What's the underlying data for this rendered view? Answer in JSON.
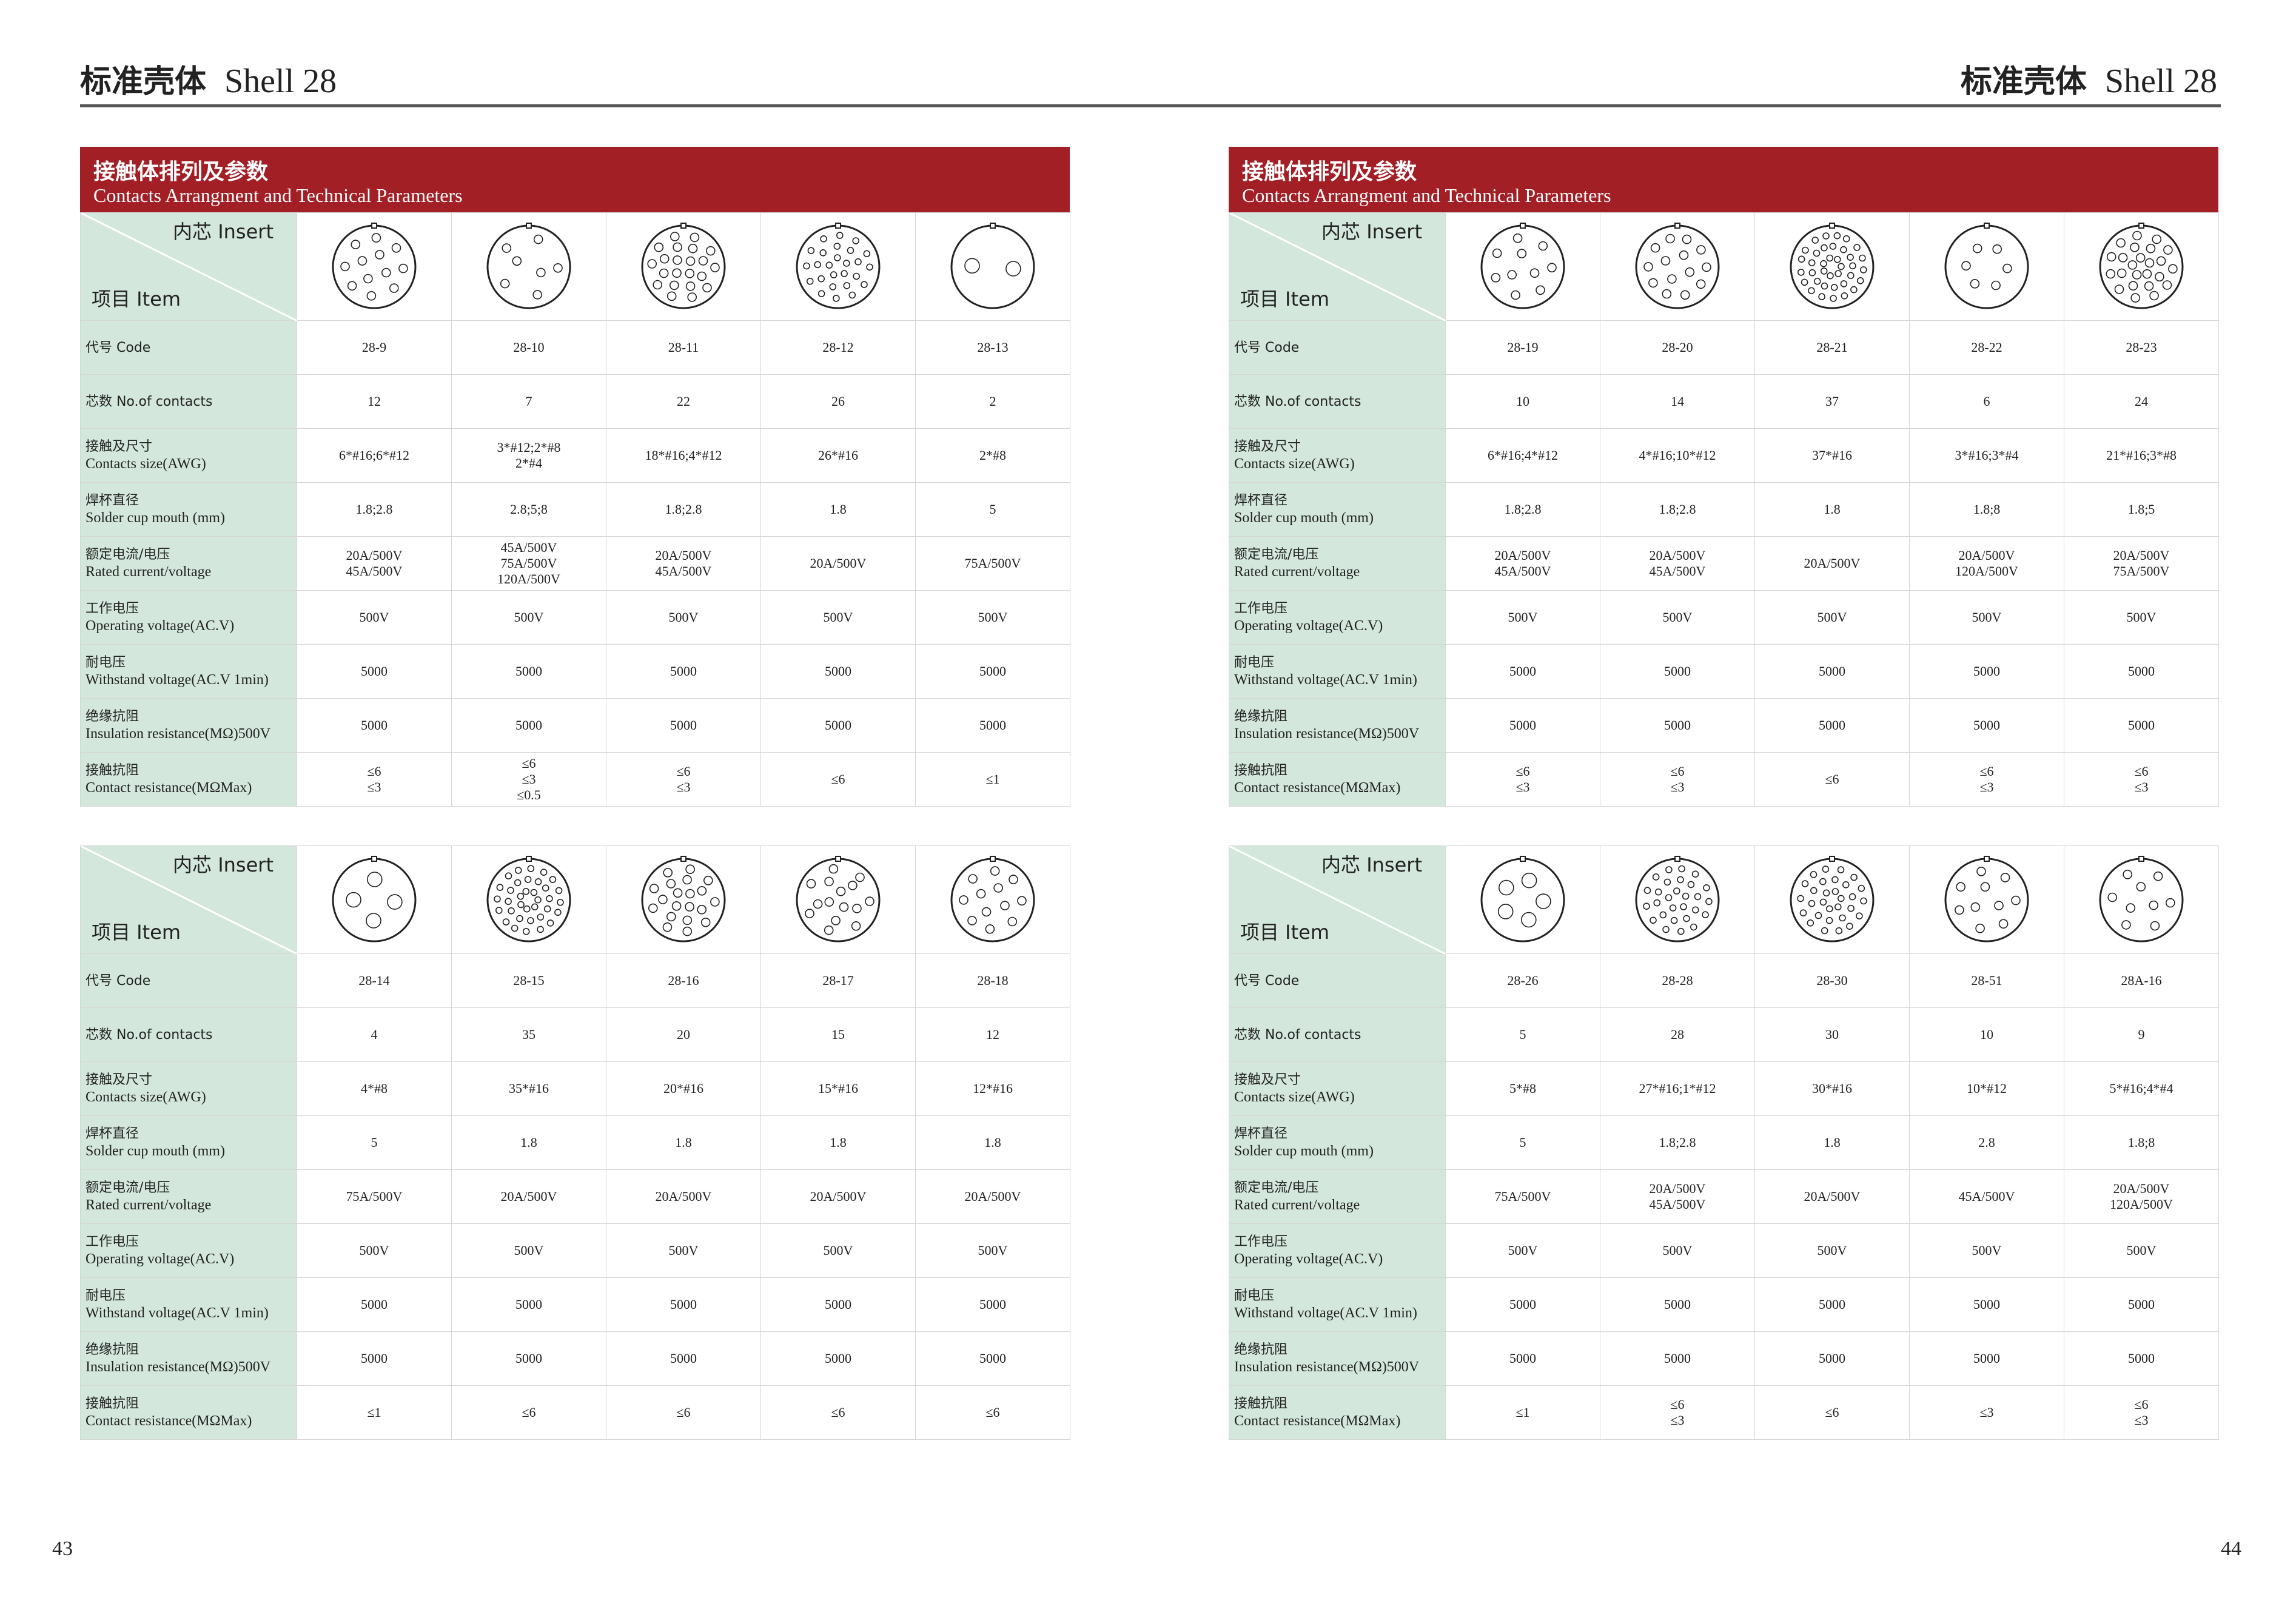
{
  "page_title_cn": "标准壳体",
  "page_title_en": "Shell 28",
  "page_numbers": {
    "left": "43",
    "right": "44"
  },
  "banner": {
    "cn": "接触体排列及参数",
    "en": "Contacts Arrangment and Technical Parameters"
  },
  "corner": {
    "insert": "内芯 Insert",
    "item": "项目 Item"
  },
  "row_labels": [
    {
      "cn": "代号 Code",
      "en": ""
    },
    {
      "cn": "芯数 No.of contacts",
      "en": ""
    },
    {
      "cn": "接触及尺寸",
      "en": "Contacts size(AWG)"
    },
    {
      "cn": "焊杯直径",
      "en": "Solder cup mouth (mm)"
    },
    {
      "cn": "额定电流/电压",
      "en": "Rated current/voltage"
    },
    {
      "cn": "工作电压",
      "en": "Operating voltage(AC.V)"
    },
    {
      "cn": "耐电压",
      "en": "Withstand voltage(AC.V 1min)"
    },
    {
      "cn": "绝缘抗阻",
      "en": "Insulation resistance(MΩ)500V"
    },
    {
      "cn": "接触抗阻",
      "en": "Contact resistance(MΩMax)"
    }
  ],
  "tables": [
    {
      "columns": [
        {
          "code": "28-9",
          "contacts": "12",
          "size": "6*#16;6*#12",
          "cup": "1.8;2.8",
          "rated": "20A/500V\n45A/500V",
          "op": "500V",
          "withstand": "5000",
          "insulation": "5000",
          "contact_res": "≤6\n≤3",
          "icon": "insert-28-9-icon"
        },
        {
          "code": "28-10",
          "contacts": "7",
          "size": "3*#12;2*#8\n2*#4",
          "cup": "2.8;5;8",
          "rated": "45A/500V\n75A/500V\n120A/500V",
          "op": "500V",
          "withstand": "5000",
          "insulation": "5000",
          "contact_res": "≤6\n≤3\n≤0.5",
          "icon": "insert-28-10-icon"
        },
        {
          "code": "28-11",
          "contacts": "22",
          "size": "18*#16;4*#12",
          "cup": "1.8;2.8",
          "rated": "20A/500V\n45A/500V",
          "op": "500V",
          "withstand": "5000",
          "insulation": "5000",
          "contact_res": "≤6\n≤3",
          "icon": "insert-28-11-icon"
        },
        {
          "code": "28-12",
          "contacts": "26",
          "size": "26*#16",
          "cup": "1.8",
          "rated": "20A/500V",
          "op": "500V",
          "withstand": "5000",
          "insulation": "5000",
          "contact_res": "≤6",
          "icon": "insert-28-12-icon"
        },
        {
          "code": "28-13",
          "contacts": "2",
          "size": "2*#8",
          "cup": "5",
          "rated": "75A/500V",
          "op": "500V",
          "withstand": "5000",
          "insulation": "5000",
          "contact_res": "≤1",
          "icon": "insert-28-13-icon"
        }
      ]
    },
    {
      "columns": [
        {
          "code": "28-14",
          "contacts": "4",
          "size": "4*#8",
          "cup": "5",
          "rated": "75A/500V",
          "op": "500V",
          "withstand": "5000",
          "insulation": "5000",
          "contact_res": "≤1",
          "icon": "insert-28-14-icon"
        },
        {
          "code": "28-15",
          "contacts": "35",
          "size": "35*#16",
          "cup": "1.8",
          "rated": "20A/500V",
          "op": "500V",
          "withstand": "5000",
          "insulation": "5000",
          "contact_res": "≤6",
          "icon": "insert-28-15-icon"
        },
        {
          "code": "28-16",
          "contacts": "20",
          "size": "20*#16",
          "cup": "1.8",
          "rated": "20A/500V",
          "op": "500V",
          "withstand": "5000",
          "insulation": "5000",
          "contact_res": "≤6",
          "icon": "insert-28-16-icon"
        },
        {
          "code": "28-17",
          "contacts": "15",
          "size": "15*#16",
          "cup": "1.8",
          "rated": "20A/500V",
          "op": "500V",
          "withstand": "5000",
          "insulation": "5000",
          "contact_res": "≤6",
          "icon": "insert-28-17-icon"
        },
        {
          "code": "28-18",
          "contacts": "12",
          "size": "12*#16",
          "cup": "1.8",
          "rated": "20A/500V",
          "op": "500V",
          "withstand": "5000",
          "insulation": "5000",
          "contact_res": "≤6",
          "icon": "insert-28-18-icon"
        }
      ]
    },
    {
      "columns": [
        {
          "code": "28-19",
          "contacts": "10",
          "size": "6*#16;4*#12",
          "cup": "1.8;2.8",
          "rated": "20A/500V\n45A/500V",
          "op": "500V",
          "withstand": "5000",
          "insulation": "5000",
          "contact_res": "≤6\n≤3",
          "icon": "insert-28-19-icon"
        },
        {
          "code": "28-20",
          "contacts": "14",
          "size": "4*#16;10*#12",
          "cup": "1.8;2.8",
          "rated": "20A/500V\n45A/500V",
          "op": "500V",
          "withstand": "5000",
          "insulation": "5000",
          "contact_res": "≤6\n≤3",
          "icon": "insert-28-20-icon"
        },
        {
          "code": "28-21",
          "contacts": "37",
          "size": "37*#16",
          "cup": "1.8",
          "rated": "20A/500V",
          "op": "500V",
          "withstand": "5000",
          "insulation": "5000",
          "contact_res": "≤6",
          "icon": "insert-28-21-icon"
        },
        {
          "code": "28-22",
          "contacts": "6",
          "size": "3*#16;3*#4",
          "cup": "1.8;8",
          "rated": "20A/500V\n120A/500V",
          "op": "500V",
          "withstand": "5000",
          "insulation": "5000",
          "contact_res": "≤6\n≤3",
          "icon": "insert-28-22-icon"
        },
        {
          "code": "28-23",
          "contacts": "24",
          "size": "21*#16;3*#8",
          "cup": "1.8;5",
          "rated": "20A/500V\n75A/500V",
          "op": "500V",
          "withstand": "5000",
          "insulation": "5000",
          "contact_res": "≤6\n≤3",
          "icon": "insert-28-23-icon"
        }
      ]
    },
    {
      "columns": [
        {
          "code": "28-26",
          "contacts": "5",
          "size": "5*#8",
          "cup": "5",
          "rated": "75A/500V",
          "op": "500V",
          "withstand": "5000",
          "insulation": "5000",
          "contact_res": "≤1",
          "icon": "insert-28-26-icon"
        },
        {
          "code": "28-28",
          "contacts": "28",
          "size": "27*#16;1*#12",
          "cup": "1.8;2.8",
          "rated": "20A/500V\n45A/500V",
          "op": "500V",
          "withstand": "5000",
          "insulation": "5000",
          "contact_res": "≤6\n≤3",
          "icon": "insert-28-28-icon"
        },
        {
          "code": "28-30",
          "contacts": "30",
          "size": "30*#16",
          "cup": "1.8",
          "rated": "20A/500V",
          "op": "500V",
          "withstand": "5000",
          "insulation": "5000",
          "contact_res": "≤6",
          "icon": "insert-28-30-icon"
        },
        {
          "code": "28-51",
          "contacts": "10",
          "size": "10*#12",
          "cup": "2.8",
          "rated": "45A/500V",
          "op": "500V",
          "withstand": "5000",
          "insulation": "5000",
          "contact_res": "≤3",
          "icon": "insert-28-51-icon"
        },
        {
          "code": "28A-16",
          "contacts": "9",
          "size": "5*#16;4*#4",
          "cup": "1.8;8",
          "rated": "20A/500V\n120A/500V",
          "op": "500V",
          "withstand": "5000",
          "insulation": "5000",
          "contact_res": "≤6\n≤3",
          "icon": "insert-28A-16-icon"
        }
      ]
    }
  ],
  "colors": {
    "banner": "#a31f26",
    "label_bg": "#d3e7dc",
    "rule": "#555555"
  }
}
